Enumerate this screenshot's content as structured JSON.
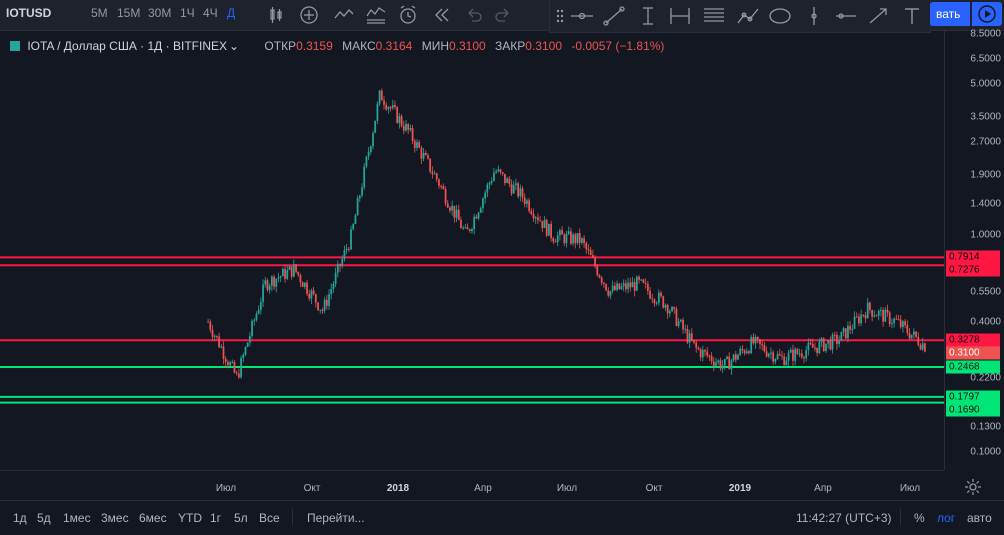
{
  "toolbar": {
    "symbol": "IOTUSD",
    "timeframes": [
      "5М",
      "15М",
      "30М",
      "1Ч",
      "4Ч",
      "Д"
    ],
    "active_timeframe": "Д",
    "save_label": "вать"
  },
  "legend": {
    "title": "IOTA / Доллар США",
    "interval": "1Д",
    "exchange": "BITFINEX",
    "open_label": "ОТКР",
    "open": "0.3159",
    "high_label": "МАКС",
    "high": "0.3164",
    "low_label": "МИН",
    "low": "0.3100",
    "close_label": "ЗАКР",
    "close": "0.3100",
    "change": "-0.0057 (−1.81%)",
    "colors": {
      "up": "#26a69a",
      "down": "#ef5350"
    }
  },
  "price_axis": {
    "scale": "log",
    "ticks": [
      "8.5000",
      "6.5000",
      "5.0000",
      "3.5000",
      "2.7000",
      "1.9000",
      "1.4000",
      "1.0000",
      "0.5500",
      "0.4000",
      "0.2200",
      "0.1300",
      "0.1000"
    ]
  },
  "levels": [
    {
      "price": "0.7914",
      "color": "#ff1744"
    },
    {
      "price": "0.7276",
      "color": "#ff1744"
    },
    {
      "price": "0.3278",
      "color": "#ff1744"
    },
    {
      "price": "0.3100",
      "color": "#ef5350",
      "current": true
    },
    {
      "price": "0.2468",
      "color": "#00e676"
    },
    {
      "price": "0.1797",
      "color": "#00e676"
    },
    {
      "price": "0.1690",
      "color": "#00e676"
    }
  ],
  "time_axis": {
    "labels": [
      "Июл",
      "Окт",
      "2018",
      "Апр",
      "Июл",
      "Окт",
      "2019",
      "Апр",
      "Июл"
    ],
    "bold": [
      "2018",
      "2019"
    ]
  },
  "bottom": {
    "ranges": [
      "1д",
      "5д",
      "1мес",
      "3мес",
      "6мес",
      "YTD",
      "1г",
      "5л",
      "Все"
    ],
    "goto": "Перейти...",
    "clock": "11:42:27 (UTC+3)",
    "percent": "%",
    "log": "лог",
    "auto": "авто"
  },
  "chart_data": {
    "type": "candlestick",
    "y_scale": "log",
    "x": [
      "2017-06",
      "2017-07",
      "2017-08",
      "2017-09",
      "2017-10",
      "2017-11",
      "2017-12",
      "2018-01",
      "2018-02",
      "2018-03",
      "2018-04",
      "2018-05",
      "2018-06",
      "2018-07",
      "2018-08",
      "2018-09",
      "2018-10",
      "2018-11",
      "2018-12",
      "2019-01",
      "2019-02",
      "2019-03",
      "2019-04",
      "2019-05",
      "2019-06",
      "2019-07"
    ],
    "close": [
      0.4,
      0.22,
      0.6,
      0.7,
      0.45,
      1.0,
      4.5,
      3.0,
      1.8,
      1.0,
      2.0,
      1.5,
      1.0,
      0.95,
      0.55,
      0.6,
      0.48,
      0.3,
      0.25,
      0.32,
      0.27,
      0.3,
      0.33,
      0.46,
      0.4,
      0.31
    ]
  }
}
